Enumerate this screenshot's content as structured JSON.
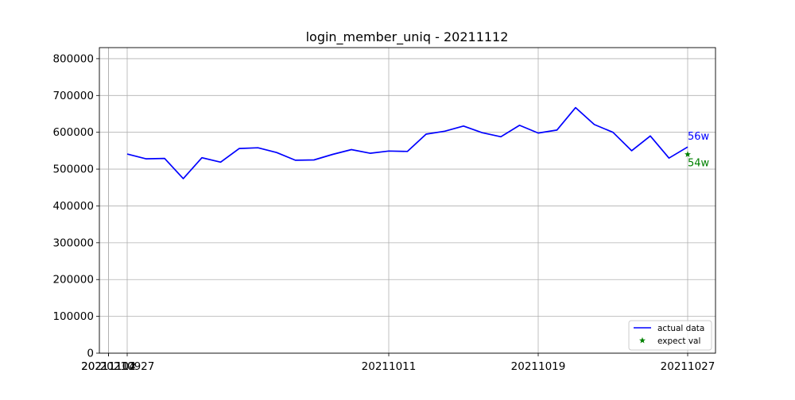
{
  "chart_data": {
    "type": "line",
    "title": "login_member_uniq - 20211112",
    "xlabel": "",
    "ylabel": "",
    "x": [
      "20210927",
      "20210928",
      "20210929",
      "20210930",
      "20211001",
      "20211002",
      "20211003",
      "20211004",
      "20211005",
      "20211006",
      "20211007",
      "20211008",
      "20211009",
      "20211010",
      "20211011",
      "20211012",
      "20211013",
      "20211014",
      "20211015",
      "20211016",
      "20211017",
      "20211018",
      "20211019",
      "20211020",
      "20211021",
      "20211022",
      "20211023",
      "20211024",
      "20211025",
      "20211026",
      "20211027"
    ],
    "x_ticks": [
      "20210927",
      "20211011",
      "20211019",
      "20211027",
      "20211104",
      "20211112"
    ],
    "y_ticks": [
      "0",
      "100000",
      "200000",
      "300000",
      "400000",
      "500000",
      "600000",
      "700000",
      "800000"
    ],
    "ylim": [
      0,
      830000
    ],
    "grid": true,
    "legend_position": "lower-right",
    "series": [
      {
        "name": "actual data",
        "color": "#0000ff",
        "marker": "line",
        "values": [
          541000,
          528000,
          529000,
          474000,
          531000,
          519000,
          556000,
          558000,
          545000,
          524000,
          525000,
          540000,
          553000,
          543000,
          549000,
          548000,
          595000,
          603000,
          617000,
          599000,
          588000,
          619000,
          598000,
          606000,
          667000,
          621000,
          600000,
          550000,
          590000,
          530000,
          560000
        ]
      },
      {
        "name": "expect val",
        "color": "#008000",
        "marker": "star",
        "points": [
          {
            "index": 30,
            "value": 540000
          }
        ]
      }
    ],
    "annotations": [
      {
        "text": "56w",
        "color": "#0000ff",
        "index": 30,
        "value": 560000,
        "placement": "above-right"
      },
      {
        "text": "54w",
        "color": "#008000",
        "index": 30,
        "value": 540000,
        "placement": "below-right"
      }
    ]
  }
}
